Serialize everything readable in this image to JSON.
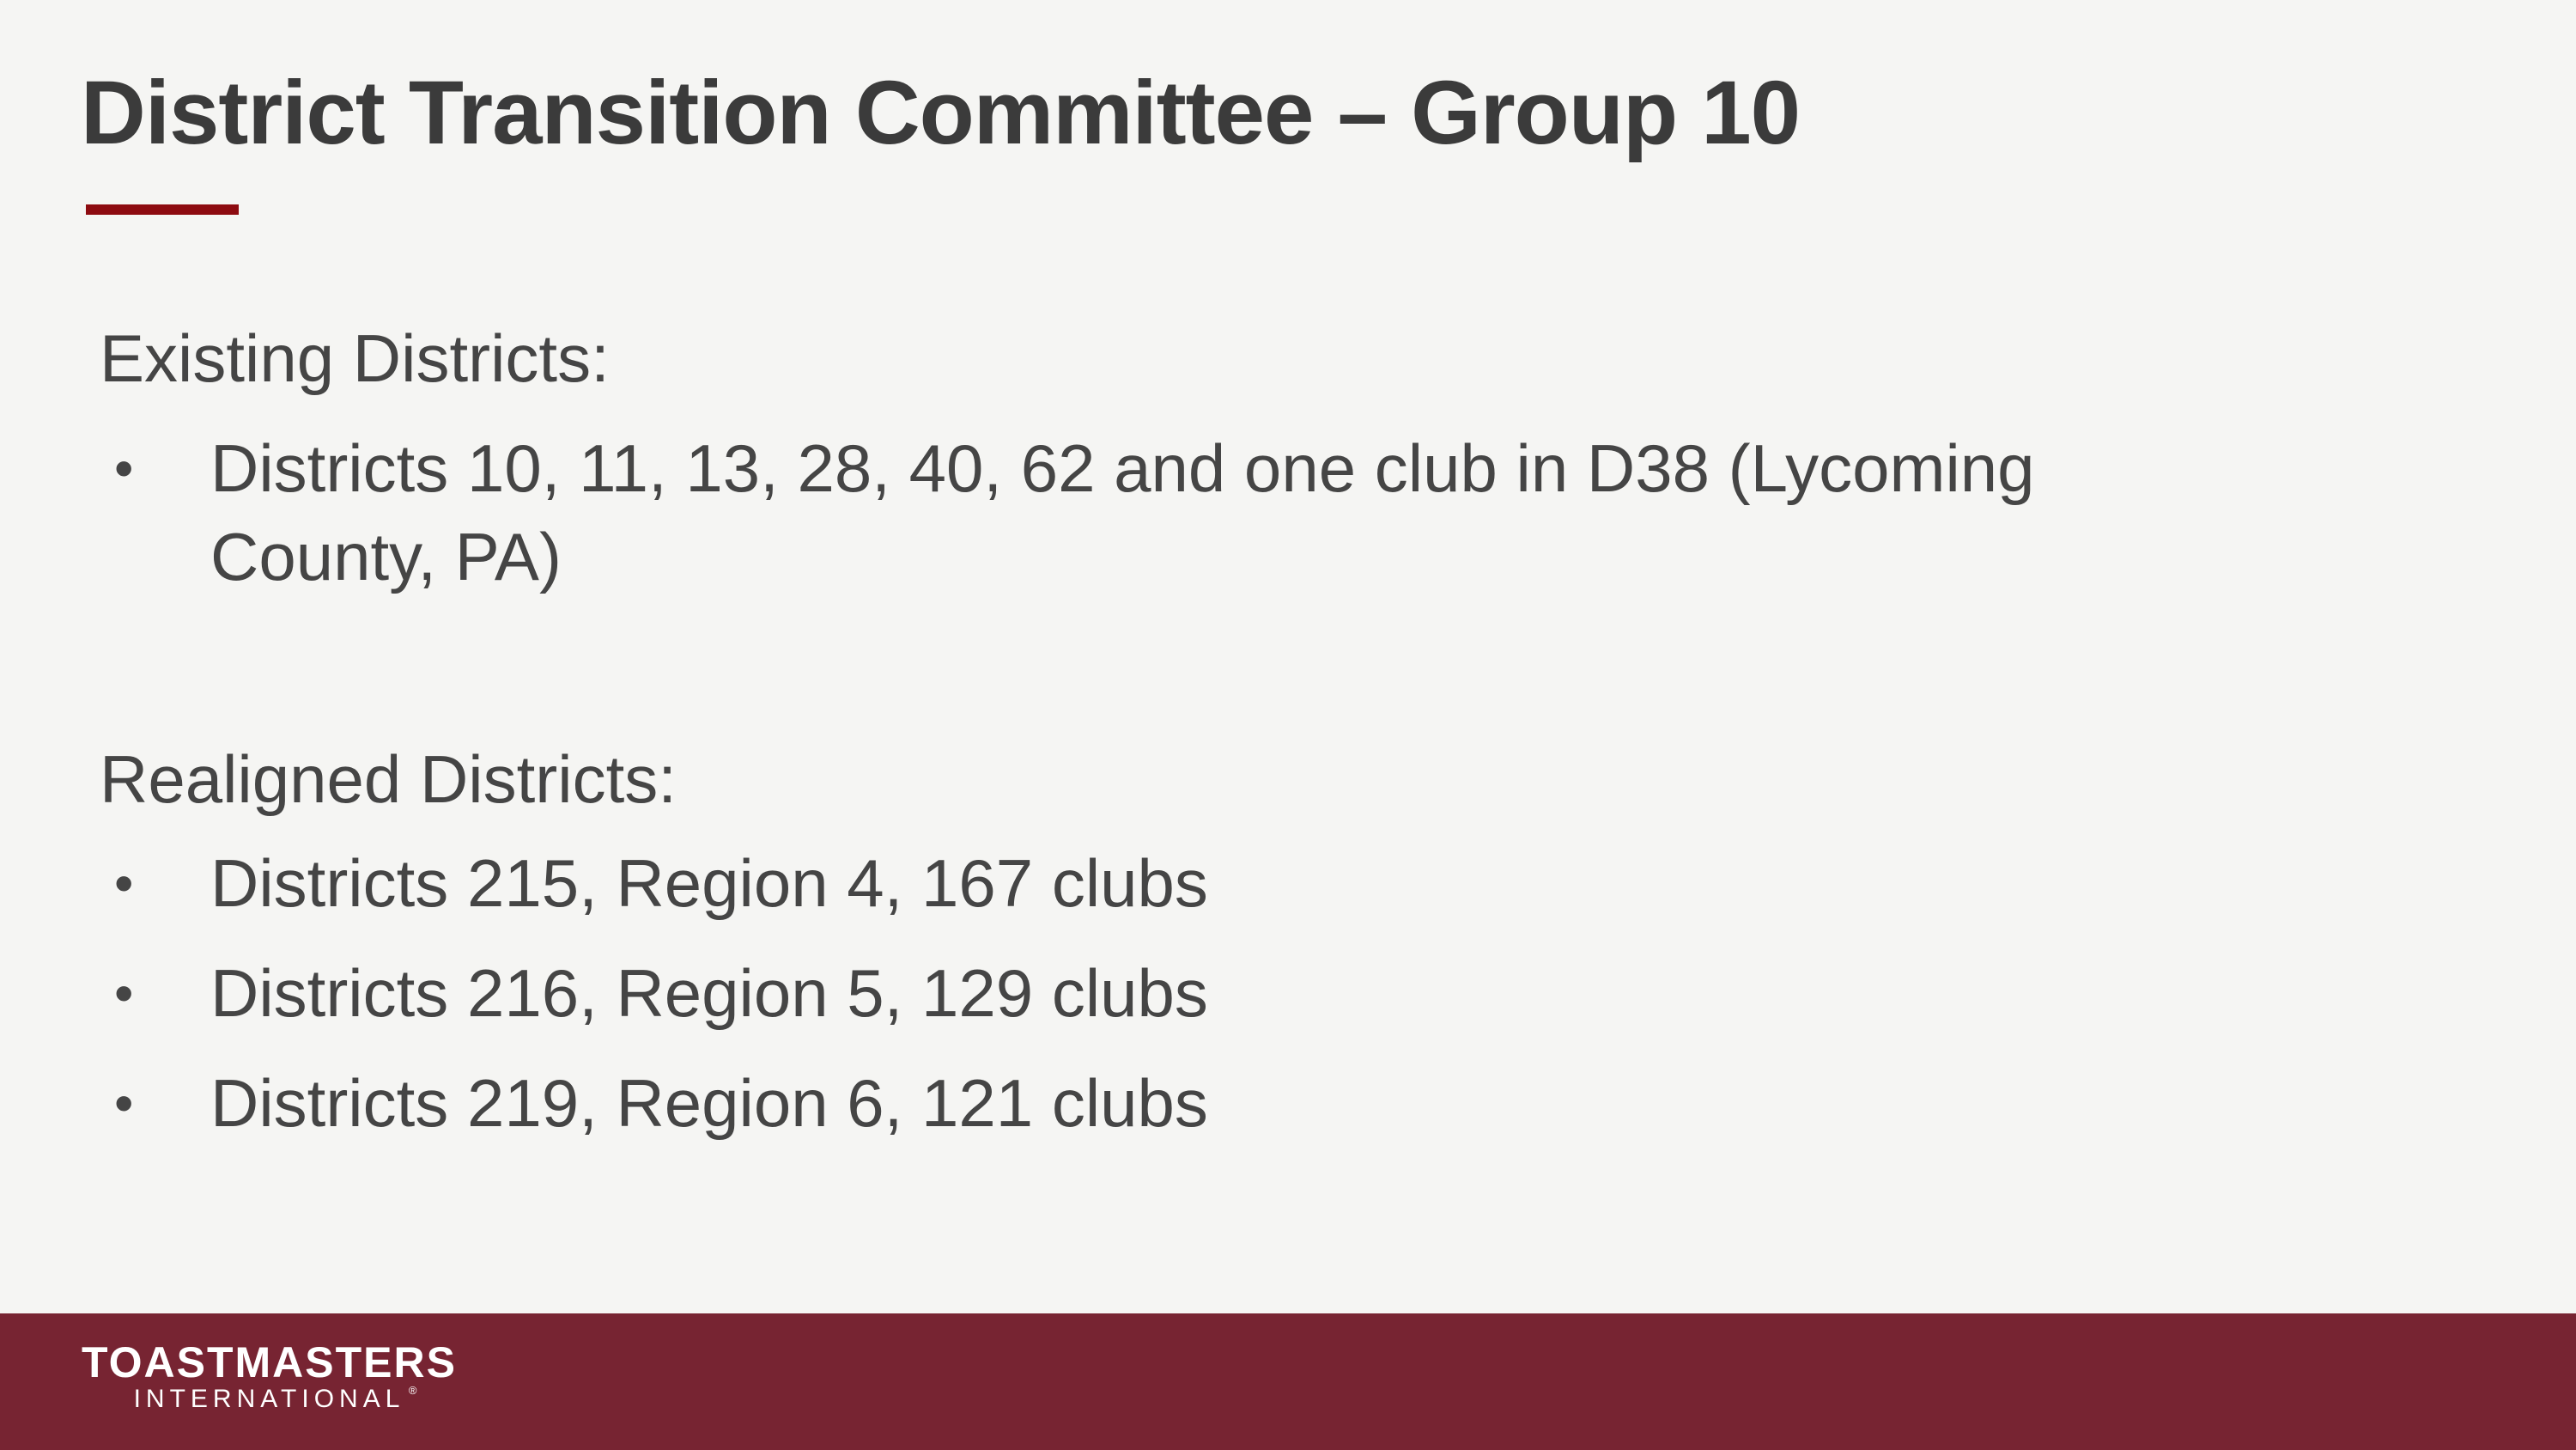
{
  "slide": {
    "title": "District Transition Committee – Group 10",
    "bullet_char": "•",
    "colors": {
      "background": "#f5f5f3",
      "title_text": "#3b3b3b",
      "body_text": "#454545",
      "accent_underline_red": "#8d0b10",
      "footer_maroon": "#772432",
      "logo_text": "#ffffff"
    },
    "sections": [
      {
        "heading": "Existing Districts:",
        "bullets": [
          {
            "lines": [
              "Districts 10, 11, 13, 28, 40, 62 and one club in D38 (Lycoming",
              "County, PA)"
            ]
          }
        ]
      },
      {
        "heading": "Realigned Districts:",
        "bullets": [
          {
            "lines": [
              "Districts 215, Region 4, 167 clubs"
            ]
          },
          {
            "lines": [
              "Districts 216, Region 5, 129 clubs"
            ]
          },
          {
            "lines": [
              "Districts 219, Region 6, 121 clubs"
            ]
          }
        ]
      }
    ],
    "footer": {
      "logo_primary": "TOASTMASTERS",
      "logo_secondary": "INTERNATIONAL",
      "registered_mark": "®"
    }
  }
}
